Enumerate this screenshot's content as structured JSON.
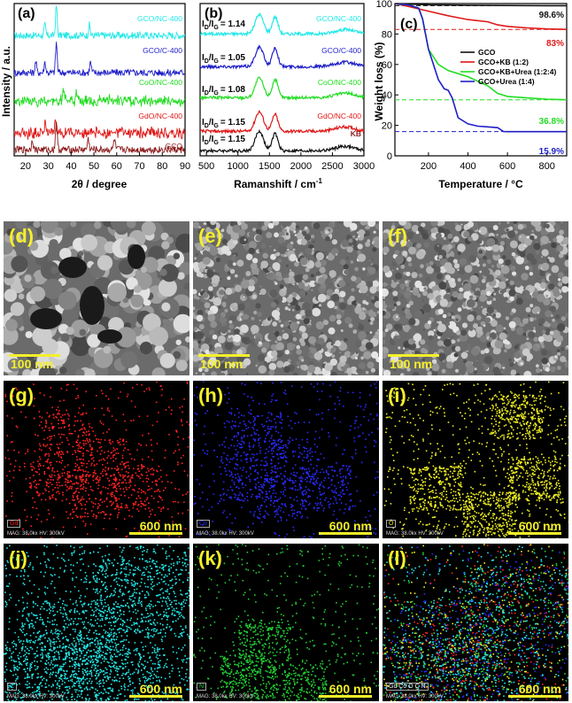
{
  "panels": {
    "a": {
      "label": "(a)",
      "xlabel": "2θ / degree",
      "ylabel": "Intensity / a.u.",
      "xticks": [
        "20",
        "30",
        "40",
        "50",
        "60",
        "70",
        "80",
        "90"
      ],
      "traces": [
        {
          "name": "GCO/NC-400",
          "color": "#22e8e8"
        },
        {
          "name": "GCO/C-400",
          "color": "#1f1fc8"
        },
        {
          "name": "CoO/NC-400",
          "color": "#22dd22"
        },
        {
          "name": "GdO/NC-400",
          "color": "#e01818"
        },
        {
          "name": "GCO",
          "color": "#8b1a1a"
        }
      ]
    },
    "b": {
      "label": "(b)",
      "xlabel": "Ramanshift / cm",
      "xlabel_sup": "-1",
      "xticks": [
        "500",
        "1000",
        "1500",
        "2000",
        "2500",
        "3000"
      ],
      "traces": [
        {
          "name": "GCO/NC-400",
          "ratio": "= 1.14",
          "color": "#22e8e8"
        },
        {
          "name": "GCO/C-400",
          "ratio": "= 1.05",
          "color": "#1f1fc8"
        },
        {
          "name": "CoO/NC-400",
          "ratio": "= 1.08",
          "color": "#22dd22"
        },
        {
          "name": "GdO/NC-400",
          "ratio": "= 1.15",
          "color": "#e01818"
        },
        {
          "name": "KB",
          "ratio": "= 1.15",
          "color": "#111111"
        }
      ],
      "ratio_prefix": "I",
      "ratio_d": "D",
      "ratio_mid": "/I",
      "ratio_g": "G"
    },
    "c": {
      "label": "(c)",
      "xlabel": "Temperature / ",
      "xlabel_unit": "°C",
      "ylabel": "Weight loss (%)",
      "xticks": [
        "200",
        "400",
        "600",
        "800"
      ],
      "yticks": [
        "0",
        "20",
        "40",
        "60",
        "80",
        "100"
      ],
      "legend": [
        {
          "name": "GCO",
          "color": "#111111"
        },
        {
          "name": "GCO+KB (1:2)",
          "color": "#e01818"
        },
        {
          "name": "GCO+KB+Urea (1:2:4)",
          "color": "#22dd22"
        },
        {
          "name": "GCO+Urea (1:4)",
          "color": "#1f1fc8"
        }
      ],
      "annotations": [
        {
          "text": "98.6%",
          "color": "#111111"
        },
        {
          "text": "83%",
          "color": "#e01818"
        },
        {
          "text": "36.8%",
          "color": "#22dd22"
        },
        {
          "text": "15.9%",
          "color": "#1f1fc8"
        }
      ]
    },
    "sem": [
      {
        "label": "(d)",
        "scale": "100 nm"
      },
      {
        "label": "(e)",
        "scale": "100 nm"
      },
      {
        "label": "(f)",
        "scale": "100 nm"
      }
    ],
    "maps": [
      {
        "label": "(g)",
        "scale": "600 nm",
        "element": "Gd",
        "color": "#ff2222",
        "info": "MAG: 38.0kx  HV: 300kV"
      },
      {
        "label": "(h)",
        "scale": "600 nm",
        "element": "Co",
        "color": "#2a2aff",
        "info": "MAG: 38.0kx  HV: 300kV"
      },
      {
        "label": "(i)",
        "scale": "600 nm",
        "element": "O",
        "color": "#eeee22",
        "info": "MAG: 38.0kx  HV: 300kV"
      },
      {
        "label": "(j)",
        "scale": "600 nm",
        "element": "C",
        "color": "#22e5e5",
        "info": "MAG: 38.0kx  HV: 300kV"
      },
      {
        "label": "(k)",
        "scale": "600 nm",
        "element": "N",
        "color": "#22cc33",
        "info": "MAG: 38.0kx  HV: 300kV"
      },
      {
        "label": "(l)",
        "scale": "600 nm",
        "element": "Gd Co O C N",
        "color": "#ffffff",
        "info": "MAG: 38.0kx  HV: 300kV"
      }
    ]
  },
  "chart_data": [
    {
      "type": "line",
      "panel": "a",
      "xlabel": "2θ / degree",
      "ylabel": "Intensity / a.u.",
      "xlim": [
        15,
        90
      ],
      "series": [
        {
          "name": "GCO/NC-400",
          "peaks": [
            {
              "x": 33.5,
              "height": "strong"
            },
            {
              "x": 28.5
            },
            {
              "x": 48
            }
          ]
        },
        {
          "name": "GCO/C-400",
          "peaks": [
            {
              "x": 33.5,
              "height": "strong"
            },
            {
              "x": 24.5
            },
            {
              "x": 28.5
            },
            {
              "x": 48.5
            }
          ]
        },
        {
          "name": "CoO/NC-400",
          "peaks": [
            {
              "x": 36.5
            },
            {
              "x": 42.5
            }
          ]
        },
        {
          "name": "GdO/NC-400",
          "peaks": [
            {
              "x": 28.5
            },
            {
              "x": 33
            }
          ]
        },
        {
          "name": "GCO",
          "peaks": [
            {
              "x": 33.5,
              "height": "strong"
            },
            {
              "x": 23
            },
            {
              "x": 47.5
            },
            {
              "x": 59
            }
          ]
        }
      ]
    },
    {
      "type": "line",
      "panel": "b",
      "xlabel": "Ramanshift / cm-1",
      "xlim": [
        400,
        3000
      ],
      "series": [
        {
          "name": "GCO/NC-400",
          "ID_IG": 1.14,
          "D_band": 1340,
          "G_band": 1590
        },
        {
          "name": "GCO/C-400",
          "ID_IG": 1.05,
          "D_band": 1340,
          "G_band": 1590
        },
        {
          "name": "CoO/NC-400",
          "ID_IG": 1.08,
          "D_band": 1340,
          "G_band": 1590
        },
        {
          "name": "GdO/NC-400",
          "ID_IG": 1.15,
          "D_band": 1340,
          "G_band": 1590
        },
        {
          "name": "KB",
          "ID_IG": 1.15,
          "D_band": 1340,
          "G_band": 1590
        }
      ]
    },
    {
      "type": "line",
      "panel": "c",
      "xlabel": "Temperature / °C",
      "ylabel": "Weight loss (%)",
      "xlim": [
        30,
        900
      ],
      "ylim": [
        0,
        100
      ],
      "series": [
        {
          "name": "GCO",
          "x": [
            30,
            200,
            400,
            600,
            800,
            900
          ],
          "y": [
            100,
            99.2,
            98.9,
            98.7,
            98.6,
            98.6
          ],
          "final": 98.6
        },
        {
          "name": "GCO+KB (1:2)",
          "x": [
            30,
            100,
            200,
            300,
            400,
            500,
            550,
            600,
            700,
            800,
            900
          ],
          "y": [
            100,
            98,
            95,
            92,
            89.5,
            88,
            86,
            85,
            84,
            83.3,
            83
          ],
          "final": 83
        },
        {
          "name": "GCO+KB+Urea (1:2:4)",
          "x": [
            30,
            100,
            150,
            170,
            200,
            250,
            300,
            400,
            500,
            550,
            600,
            700,
            800,
            900
          ],
          "y": [
            100,
            99,
            97,
            90,
            70,
            60,
            56,
            52,
            46,
            41,
            39,
            38,
            37.2,
            36.8
          ],
          "final": 36.8
        },
        {
          "name": "GCO+Urea (1:4)",
          "x": [
            30,
            100,
            150,
            170,
            200,
            250,
            280,
            300,
            320,
            350,
            400,
            450,
            500,
            550,
            580,
            600,
            700,
            800,
            900
          ],
          "y": [
            100,
            99,
            97,
            90,
            70,
            50,
            44,
            43,
            38,
            25,
            21,
            19.5,
            19,
            18.5,
            16,
            15.9,
            15.9,
            15.9,
            15.9
          ],
          "final": 15.9
        }
      ]
    }
  ]
}
